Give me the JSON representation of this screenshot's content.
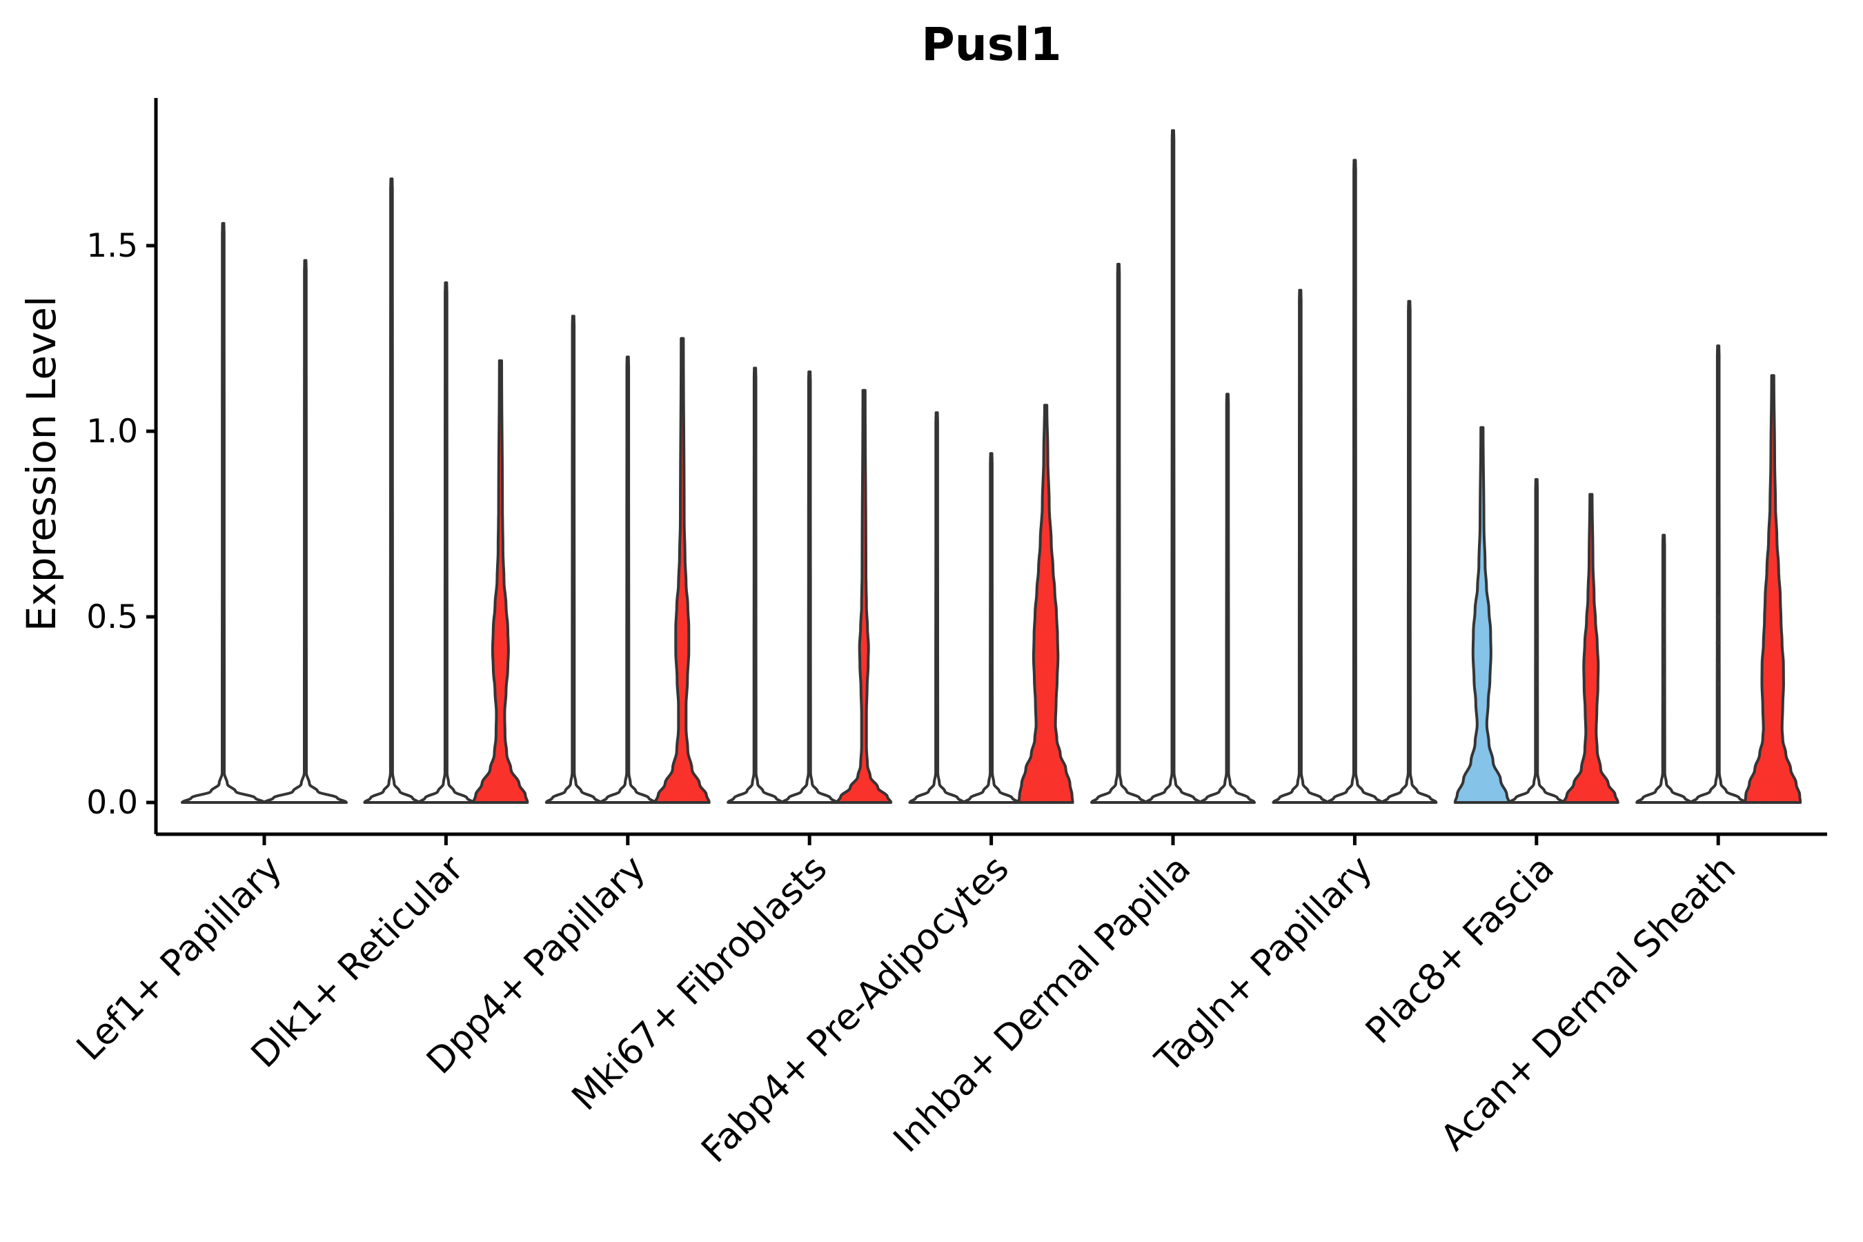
{
  "chart_data": {
    "type": "violin",
    "title": "Pusl1",
    "ylabel": "Expression Level",
    "xlabel": "",
    "y_ticks": [
      0.0,
      0.5,
      1.0,
      1.5
    ],
    "y_tick_labels": [
      "0.0",
      "0.5",
      "1.0",
      "1.5"
    ],
    "ylim": [
      -0.09,
      1.9
    ],
    "grid": "off",
    "legend": "none",
    "colors": {
      "red": "#F9322C",
      "blue": "#85C3E8",
      "outline": "#343434",
      "axis": "#000000",
      "dot": "#3a3a3a"
    },
    "categories": [
      "Lef1+ Papillary",
      "Dlk1+ Reticular",
      "Dpp4+ Papillary",
      "Mki67+ Fibroblasts",
      "Fabp4+ Pre-Adipocytes",
      "Inhba+ Dermal Papilla",
      "Tagln+ Papillary",
      "Plac8+ Fascia",
      "Acan+ Dermal Sheath"
    ],
    "groups": [
      {
        "category": "Lef1+ Papillary",
        "violins": [
          {
            "fill": "white",
            "max": 1.56
          },
          {
            "fill": "white",
            "max": 1.46
          }
        ]
      },
      {
        "category": "Dlk1+ Reticular",
        "violins": [
          {
            "fill": "white",
            "max": 1.68
          },
          {
            "fill": "white",
            "max": 1.4
          },
          {
            "fill": "red",
            "max": 1.19,
            "profile": [
              [
                0,
                39
              ],
              [
                0.02,
                36
              ],
              [
                0.05,
                27
              ],
              [
                0.09,
                15
              ],
              [
                0.13,
                9
              ],
              [
                0.18,
                6.5
              ],
              [
                0.24,
                6
              ],
              [
                0.3,
                8
              ],
              [
                0.36,
                10.5
              ],
              [
                0.41,
                11.5
              ],
              [
                0.47,
                10.5
              ],
              [
                0.53,
                8
              ],
              [
                0.6,
                5
              ],
              [
                0.68,
                3.5
              ],
              [
                0.8,
                2.8
              ],
              [
                1.19,
                1.6
              ]
            ]
          }
        ]
      },
      {
        "category": "Dpp4+ Papillary",
        "violins": [
          {
            "fill": "white",
            "max": 1.31
          },
          {
            "fill": "white",
            "max": 1.2
          },
          {
            "fill": "red",
            "max": 1.25,
            "profile": [
              [
                0,
                39
              ],
              [
                0.02,
                35
              ],
              [
                0.05,
                25
              ],
              [
                0.09,
                14
              ],
              [
                0.14,
                8
              ],
              [
                0.2,
                5.5
              ],
              [
                0.26,
                5.5
              ],
              [
                0.33,
                7.5
              ],
              [
                0.41,
                9.5
              ],
              [
                0.47,
                9.5
              ],
              [
                0.53,
                8
              ],
              [
                0.59,
                5.5
              ],
              [
                0.66,
                4
              ],
              [
                0.76,
                2.8
              ],
              [
                1.25,
                1.6
              ]
            ]
          }
        ]
      },
      {
        "category": "Mki67+ Fibroblasts",
        "violins": [
          {
            "fill": "white",
            "max": 1.17
          },
          {
            "fill": "white",
            "max": 1.16
          },
          {
            "fill": "red",
            "max": 1.11,
            "profile": [
              [
                0,
                39
              ],
              [
                0.015,
                34
              ],
              [
                0.04,
                20
              ],
              [
                0.07,
                9
              ],
              [
                0.1,
                5
              ],
              [
                0.15,
                3.5
              ],
              [
                0.24,
                3.5
              ],
              [
                0.31,
                4.5
              ],
              [
                0.37,
                6
              ],
              [
                0.42,
                6.5
              ],
              [
                0.47,
                5
              ],
              [
                0.53,
                3.5
              ],
              [
                0.62,
                2.8
              ],
              [
                1.11,
                1.6
              ]
            ]
          }
        ]
      },
      {
        "category": "Fabp4+ Pre-Adipocytes",
        "violins": [
          {
            "fill": "white",
            "max": 1.05
          },
          {
            "fill": "white",
            "max": 0.94
          },
          {
            "fill": "red",
            "max": 1.07,
            "profile": [
              [
                0,
                39
              ],
              [
                0.02,
                38
              ],
              [
                0.05,
                35
              ],
              [
                0.09,
                29
              ],
              [
                0.13,
                21
              ],
              [
                0.17,
                16
              ],
              [
                0.21,
                14
              ],
              [
                0.27,
                15
              ],
              [
                0.33,
                16.5
              ],
              [
                0.39,
                17.7
              ],
              [
                0.45,
                17
              ],
              [
                0.51,
                15.5
              ],
              [
                0.57,
                13
              ],
              [
                0.63,
                10.5
              ],
              [
                0.7,
                8
              ],
              [
                0.8,
                5
              ],
              [
                0.93,
                3
              ],
              [
                1.07,
                1.6
              ]
            ]
          }
        ]
      },
      {
        "category": "Inhba+ Dermal Papilla",
        "violins": [
          {
            "fill": "white",
            "max": 1.45
          },
          {
            "fill": "white",
            "max": 1.81
          },
          {
            "fill": "white",
            "max": 1.1
          }
        ]
      },
      {
        "category": "Tagln+ Papillary",
        "violins": [
          {
            "fill": "white",
            "max": 1.38
          },
          {
            "fill": "white",
            "max": 1.73
          },
          {
            "fill": "white",
            "max": 1.35
          }
        ]
      },
      {
        "category": "Plac8+ Fascia",
        "violins": [
          {
            "fill": "blue",
            "max": 1.01,
            "profile": [
              [
                0,
                39
              ],
              [
                0.02,
                36
              ],
              [
                0.06,
                27
              ],
              [
                0.11,
                16
              ],
              [
                0.16,
                10
              ],
              [
                0.21,
                7
              ],
              [
                0.27,
                9
              ],
              [
                0.33,
                11.5
              ],
              [
                0.4,
                13
              ],
              [
                0.46,
                12.5
              ],
              [
                0.52,
                10
              ],
              [
                0.58,
                6.5
              ],
              [
                0.64,
                4.5
              ],
              [
                0.75,
                2.8
              ],
              [
                1.01,
                1.6
              ]
            ]
          },
          {
            "fill": "white",
            "max": 0.87,
            "points": [
              0.45,
              0.39,
              0.32
            ]
          },
          {
            "fill": "red",
            "max": 0.83,
            "profile": [
              [
                0,
                39
              ],
              [
                0.02,
                35
              ],
              [
                0.05,
                25
              ],
              [
                0.09,
                14
              ],
              [
                0.14,
                9
              ],
              [
                0.19,
                7.5
              ],
              [
                0.25,
                8.5
              ],
              [
                0.31,
                10
              ],
              [
                0.37,
                10.5
              ],
              [
                0.43,
                9
              ],
              [
                0.49,
                6.5
              ],
              [
                0.55,
                4.5
              ],
              [
                0.65,
                2.8
              ],
              [
                0.83,
                1.6
              ]
            ]
          }
        ]
      },
      {
        "category": "Acan+ Dermal Sheath",
        "violins": [
          {
            "fill": "white",
            "max": 0.72,
            "points": [
              0.52,
              0.48,
              0.42,
              0.38,
              0.33,
              0.28
            ]
          },
          {
            "fill": "white",
            "max": 1.23,
            "points": [
              0.55,
              0.5,
              0.43,
              0.37,
              0.32
            ]
          },
          {
            "fill": "red",
            "max": 1.15,
            "profile": [
              [
                0,
                40
              ],
              [
                0.02,
                39
              ],
              [
                0.05,
                34
              ],
              [
                0.09,
                26
              ],
              [
                0.13,
                19
              ],
              [
                0.17,
                14.5
              ],
              [
                0.2,
                13.5
              ],
              [
                0.26,
                14.5
              ],
              [
                0.32,
                15.7
              ],
              [
                0.37,
                15.5
              ],
              [
                0.43,
                13.5
              ],
              [
                0.49,
                12
              ],
              [
                0.55,
                11
              ],
              [
                0.63,
                8.5
              ],
              [
                0.71,
                6
              ],
              [
                0.8,
                4
              ],
              [
                0.92,
                2.8
              ],
              [
                1.15,
                1.6
              ]
            ]
          }
        ]
      }
    ]
  }
}
